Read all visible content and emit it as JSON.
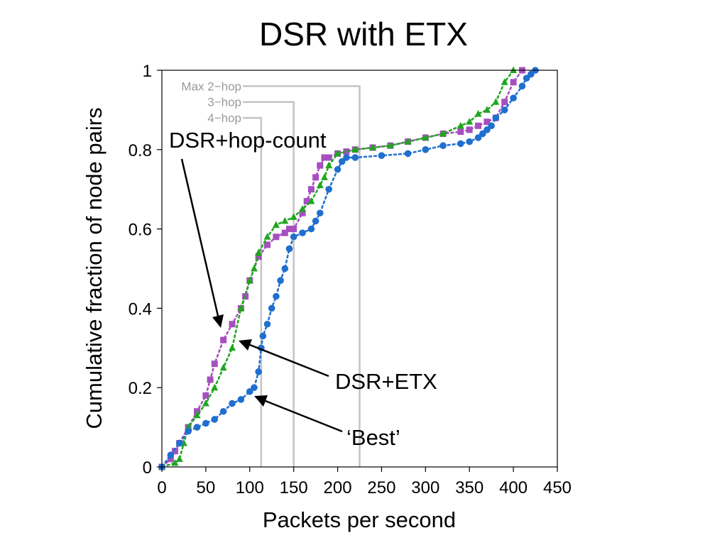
{
  "chart_data": {
    "type": "line",
    "title": "DSR with ETX",
    "xlabel": "Packets per second",
    "ylabel": "Cumulative fraction of node pairs",
    "xlim": [
      0,
      450
    ],
    "ylim": [
      0,
      1
    ],
    "xticks": [
      "0",
      "50",
      "100",
      "150",
      "200",
      "250",
      "300",
      "350",
      "400",
      "450"
    ],
    "yticks": [
      "0",
      "0.2",
      "0.4",
      "0.6",
      "0.8",
      "1"
    ],
    "grid": false,
    "reference_lines": [
      {
        "label": "Max 2−hop",
        "x": 225,
        "y": 0.96
      },
      {
        "label": "3−hop",
        "x": 150,
        "y": 0.92
      },
      {
        "label": "4−hop",
        "x": 113,
        "y": 0.88
      }
    ],
    "annotations": [
      {
        "text": "DSR+hop-count",
        "target_series": "DSR+hop-count"
      },
      {
        "text": "DSR+ETX",
        "target_series": "DSR+ETX"
      },
      {
        "text": "‘Best’",
        "target_series": "Best"
      }
    ],
    "series": [
      {
        "name": "DSR+hop-count",
        "color": "#a64fbf",
        "marker": "square",
        "x": [
          0,
          10,
          15,
          20,
          30,
          40,
          50,
          55,
          60,
          70,
          80,
          90,
          95,
          100,
          110,
          120,
          130,
          140,
          145,
          150,
          160,
          165,
          170,
          175,
          180,
          185,
          190,
          200,
          210,
          220,
          240,
          260,
          280,
          300,
          320,
          340,
          350,
          360,
          370,
          380,
          390,
          400,
          410
        ],
        "y": [
          0,
          0.02,
          0.04,
          0.06,
          0.1,
          0.14,
          0.18,
          0.22,
          0.26,
          0.32,
          0.36,
          0.4,
          0.43,
          0.47,
          0.53,
          0.56,
          0.58,
          0.59,
          0.6,
          0.6,
          0.64,
          0.67,
          0.7,
          0.73,
          0.76,
          0.78,
          0.78,
          0.79,
          0.795,
          0.8,
          0.805,
          0.81,
          0.82,
          0.83,
          0.84,
          0.845,
          0.85,
          0.86,
          0.87,
          0.88,
          0.92,
          0.97,
          1.0
        ]
      },
      {
        "name": "DSR+ETX",
        "color": "#1fa61f",
        "marker": "triangle",
        "x": [
          0,
          15,
          20,
          25,
          30,
          40,
          50,
          60,
          70,
          80,
          90,
          100,
          105,
          110,
          120,
          130,
          140,
          150,
          160,
          170,
          180,
          185,
          190,
          200,
          220,
          240,
          260,
          280,
          300,
          320,
          340,
          350,
          360,
          370,
          380,
          390,
          400
        ],
        "y": [
          0,
          0.01,
          0.02,
          0.06,
          0.1,
          0.13,
          0.16,
          0.2,
          0.25,
          0.3,
          0.4,
          0.47,
          0.5,
          0.54,
          0.58,
          0.61,
          0.62,
          0.63,
          0.65,
          0.67,
          0.71,
          0.73,
          0.76,
          0.79,
          0.8,
          0.805,
          0.81,
          0.82,
          0.83,
          0.84,
          0.86,
          0.87,
          0.89,
          0.9,
          0.92,
          0.97,
          1.0
        ]
      },
      {
        "name": "Best",
        "color": "#1f6fcf",
        "marker": "circle",
        "x": [
          0,
          10,
          20,
          30,
          40,
          50,
          60,
          70,
          80,
          90,
          100,
          105,
          110,
          113,
          115,
          120,
          125,
          130,
          135,
          140,
          145,
          150,
          160,
          170,
          175,
          180,
          190,
          200,
          205,
          210,
          220,
          250,
          280,
          300,
          320,
          340,
          350,
          360,
          365,
          370,
          375,
          380,
          390,
          400,
          410,
          415,
          420,
          425
        ],
        "y": [
          0,
          0.03,
          0.06,
          0.09,
          0.1,
          0.11,
          0.12,
          0.14,
          0.16,
          0.17,
          0.19,
          0.2,
          0.24,
          0.3,
          0.33,
          0.36,
          0.4,
          0.43,
          0.47,
          0.5,
          0.55,
          0.58,
          0.59,
          0.6,
          0.62,
          0.64,
          0.7,
          0.75,
          0.77,
          0.78,
          0.78,
          0.785,
          0.79,
          0.8,
          0.81,
          0.815,
          0.82,
          0.83,
          0.84,
          0.85,
          0.86,
          0.88,
          0.9,
          0.93,
          0.96,
          0.98,
          0.99,
          1.0
        ]
      }
    ]
  }
}
